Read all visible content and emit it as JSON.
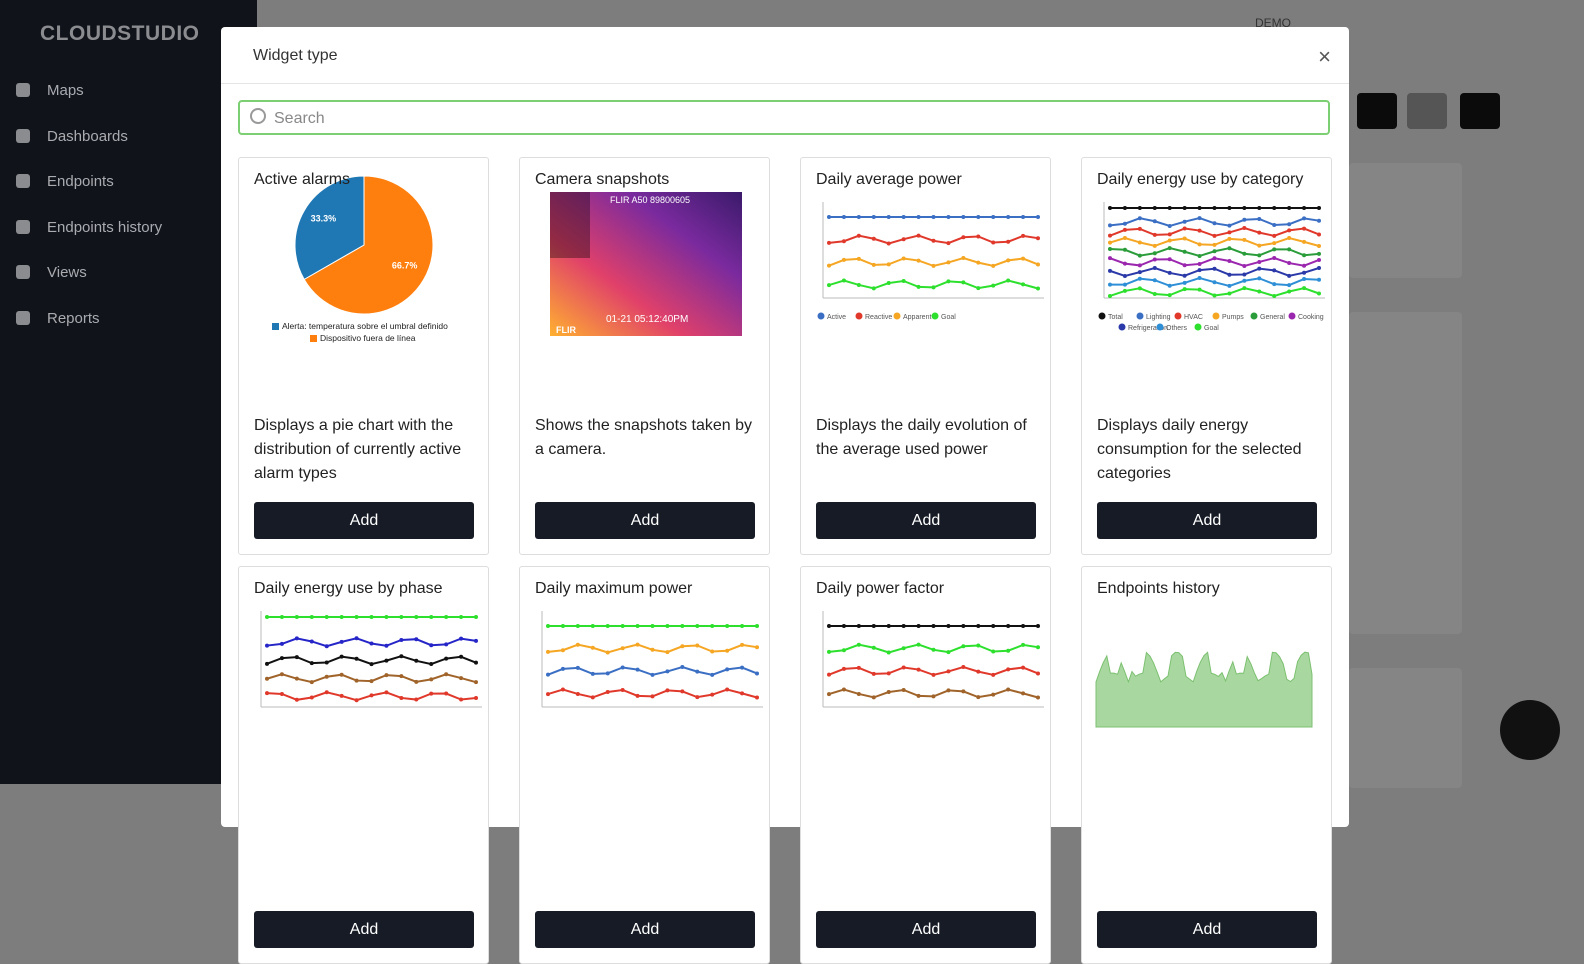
{
  "sidebar": {
    "logo": "CLOUDSTUDIO",
    "items": [
      "Maps",
      "Dashboards",
      "Endpoints",
      "Endpoints history",
      "Views",
      "Reports"
    ]
  },
  "topbar": {
    "user": "DEMO"
  },
  "modal": {
    "title": "Widget type",
    "close": "×",
    "search_placeholder": "Search",
    "cards": [
      {
        "title": "Active alarms",
        "description": "Displays a pie chart with the distribution of currently active alarm types",
        "button": "Add",
        "preview": {
          "type": "pie",
          "values": [
            33.3,
            66.7
          ],
          "value_labels": [
            "33.3%",
            "66.7%"
          ],
          "colors": [
            "#1f77b4",
            "#ff7f0e"
          ],
          "legend": [
            "Alerta: temperatura sobre el umbral definido",
            "Dispositivo fuera de línea"
          ]
        }
      },
      {
        "title": "Camera snapshots",
        "description": "Shows the snapshots taken by a camera.",
        "button": "Add",
        "preview": {
          "type": "camera",
          "header": "FLIR A50 89800605",
          "timestamp": "01-21 05:12:40PM",
          "brand": "FLIR"
        }
      },
      {
        "title": "Daily average power",
        "description": "Displays the daily evolution of the average used power",
        "button": "Add",
        "preview": {
          "type": "lines",
          "legend": [
            "Active",
            "Reactive",
            "Apparent",
            "Goal"
          ],
          "colors": [
            "#3b6fc4",
            "#e0392b",
            "#f5a623",
            "#2ee02e"
          ]
        }
      },
      {
        "title": "Daily energy use by category",
        "description": "Displays daily energy consumption for the selected categories",
        "button": "Add",
        "preview": {
          "type": "lines",
          "legend": [
            "Total",
            "Lighting",
            "HVAC",
            "Pumps",
            "General",
            "Cooking",
            "Refrigeration",
            "Others",
            "Goal"
          ],
          "colors": [
            "#111111",
            "#3b6fc4",
            "#e0392b",
            "#f5a623",
            "#2a9d3a",
            "#9b27af",
            "#2b3aa8",
            "#2f8fd6",
            "#2ee02e"
          ]
        }
      },
      {
        "title": "Daily energy use by phase",
        "button": "Add",
        "preview": {
          "type": "lines",
          "colors": [
            "#2ee02e",
            "#2525c8",
            "#111111",
            "#a0642a",
            "#e0392b"
          ]
        }
      },
      {
        "title": "Daily maximum power",
        "button": "Add",
        "preview": {
          "type": "lines",
          "colors": [
            "#2ee02e",
            "#f5a623",
            "#3b6fc4",
            "#e0392b"
          ]
        }
      },
      {
        "title": "Daily power factor",
        "button": "Add",
        "preview": {
          "type": "lines",
          "colors": [
            "#111111",
            "#2ee02e",
            "#e0392b",
            "#a0642a"
          ]
        }
      },
      {
        "title": "Endpoints history",
        "button": "Add",
        "preview": {
          "type": "area",
          "colors": [
            "#a8d8a0"
          ]
        }
      }
    ]
  }
}
